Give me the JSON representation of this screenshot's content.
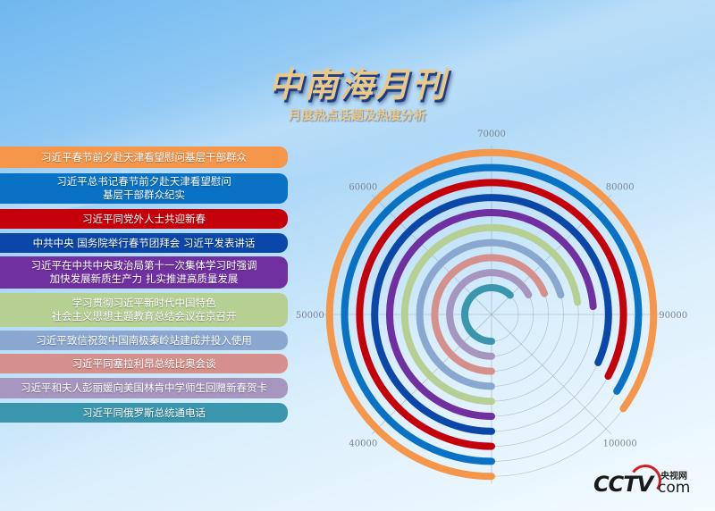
{
  "header": {
    "title": "中南海月刊",
    "subtitle": "月度热点话题及热度分析"
  },
  "logo": {
    "text": "CCTV",
    "cn": "央视网",
    "suffix": "com"
  },
  "chart_data": {
    "type": "radial-bar",
    "angular_axis": {
      "start_value": 30000,
      "end_value": 110000,
      "direction": "clockwise",
      "start_position": "bottom",
      "tick_labels": [
        "40000",
        "50000",
        "60000",
        "70000",
        "80000",
        "90000",
        "100000"
      ],
      "tick_values": [
        40000,
        50000,
        60000,
        70000,
        80000,
        90000,
        100000
      ]
    },
    "grid": true,
    "categories": [
      "习近平春节前夕赴天津看望慰问基层干部群众",
      "习近平总书记春节前夕赴天津看望慰问\n基层干部群众纪实",
      "习近平同党外人士共迎新春",
      "中共中央 国务院举行春节团拜会 习近平发表讲话",
      "习近平在中共中央政治局第十一次集体学习时强调\n加快发展新质生产力 扎实推进高质量发展",
      "学习贯彻习近平新时代中国特色\n社会主义思想主题教育总结会议在京召开",
      "习近平致信祝贺中国南极秦岭站建成并投入使用",
      "习近平同塞拉利昂总统比奥会谈",
      "习近平和夫人彭丽媛向美国林肯中学师生回赠新春贺卡",
      "习近平同俄罗斯总统通电话"
    ],
    "values": [
      97900,
      97000,
      96200,
      95400,
      89000,
      88200,
      86500,
      85200,
      83800,
      79800
    ],
    "colors": [
      "#f5964a",
      "#0a72c4",
      "#c4000a",
      "#0a47a8",
      "#7030a0",
      "#b6cf93",
      "#8aa7d0",
      "#d6908c",
      "#a696bf",
      "#3a96ad"
    ]
  }
}
